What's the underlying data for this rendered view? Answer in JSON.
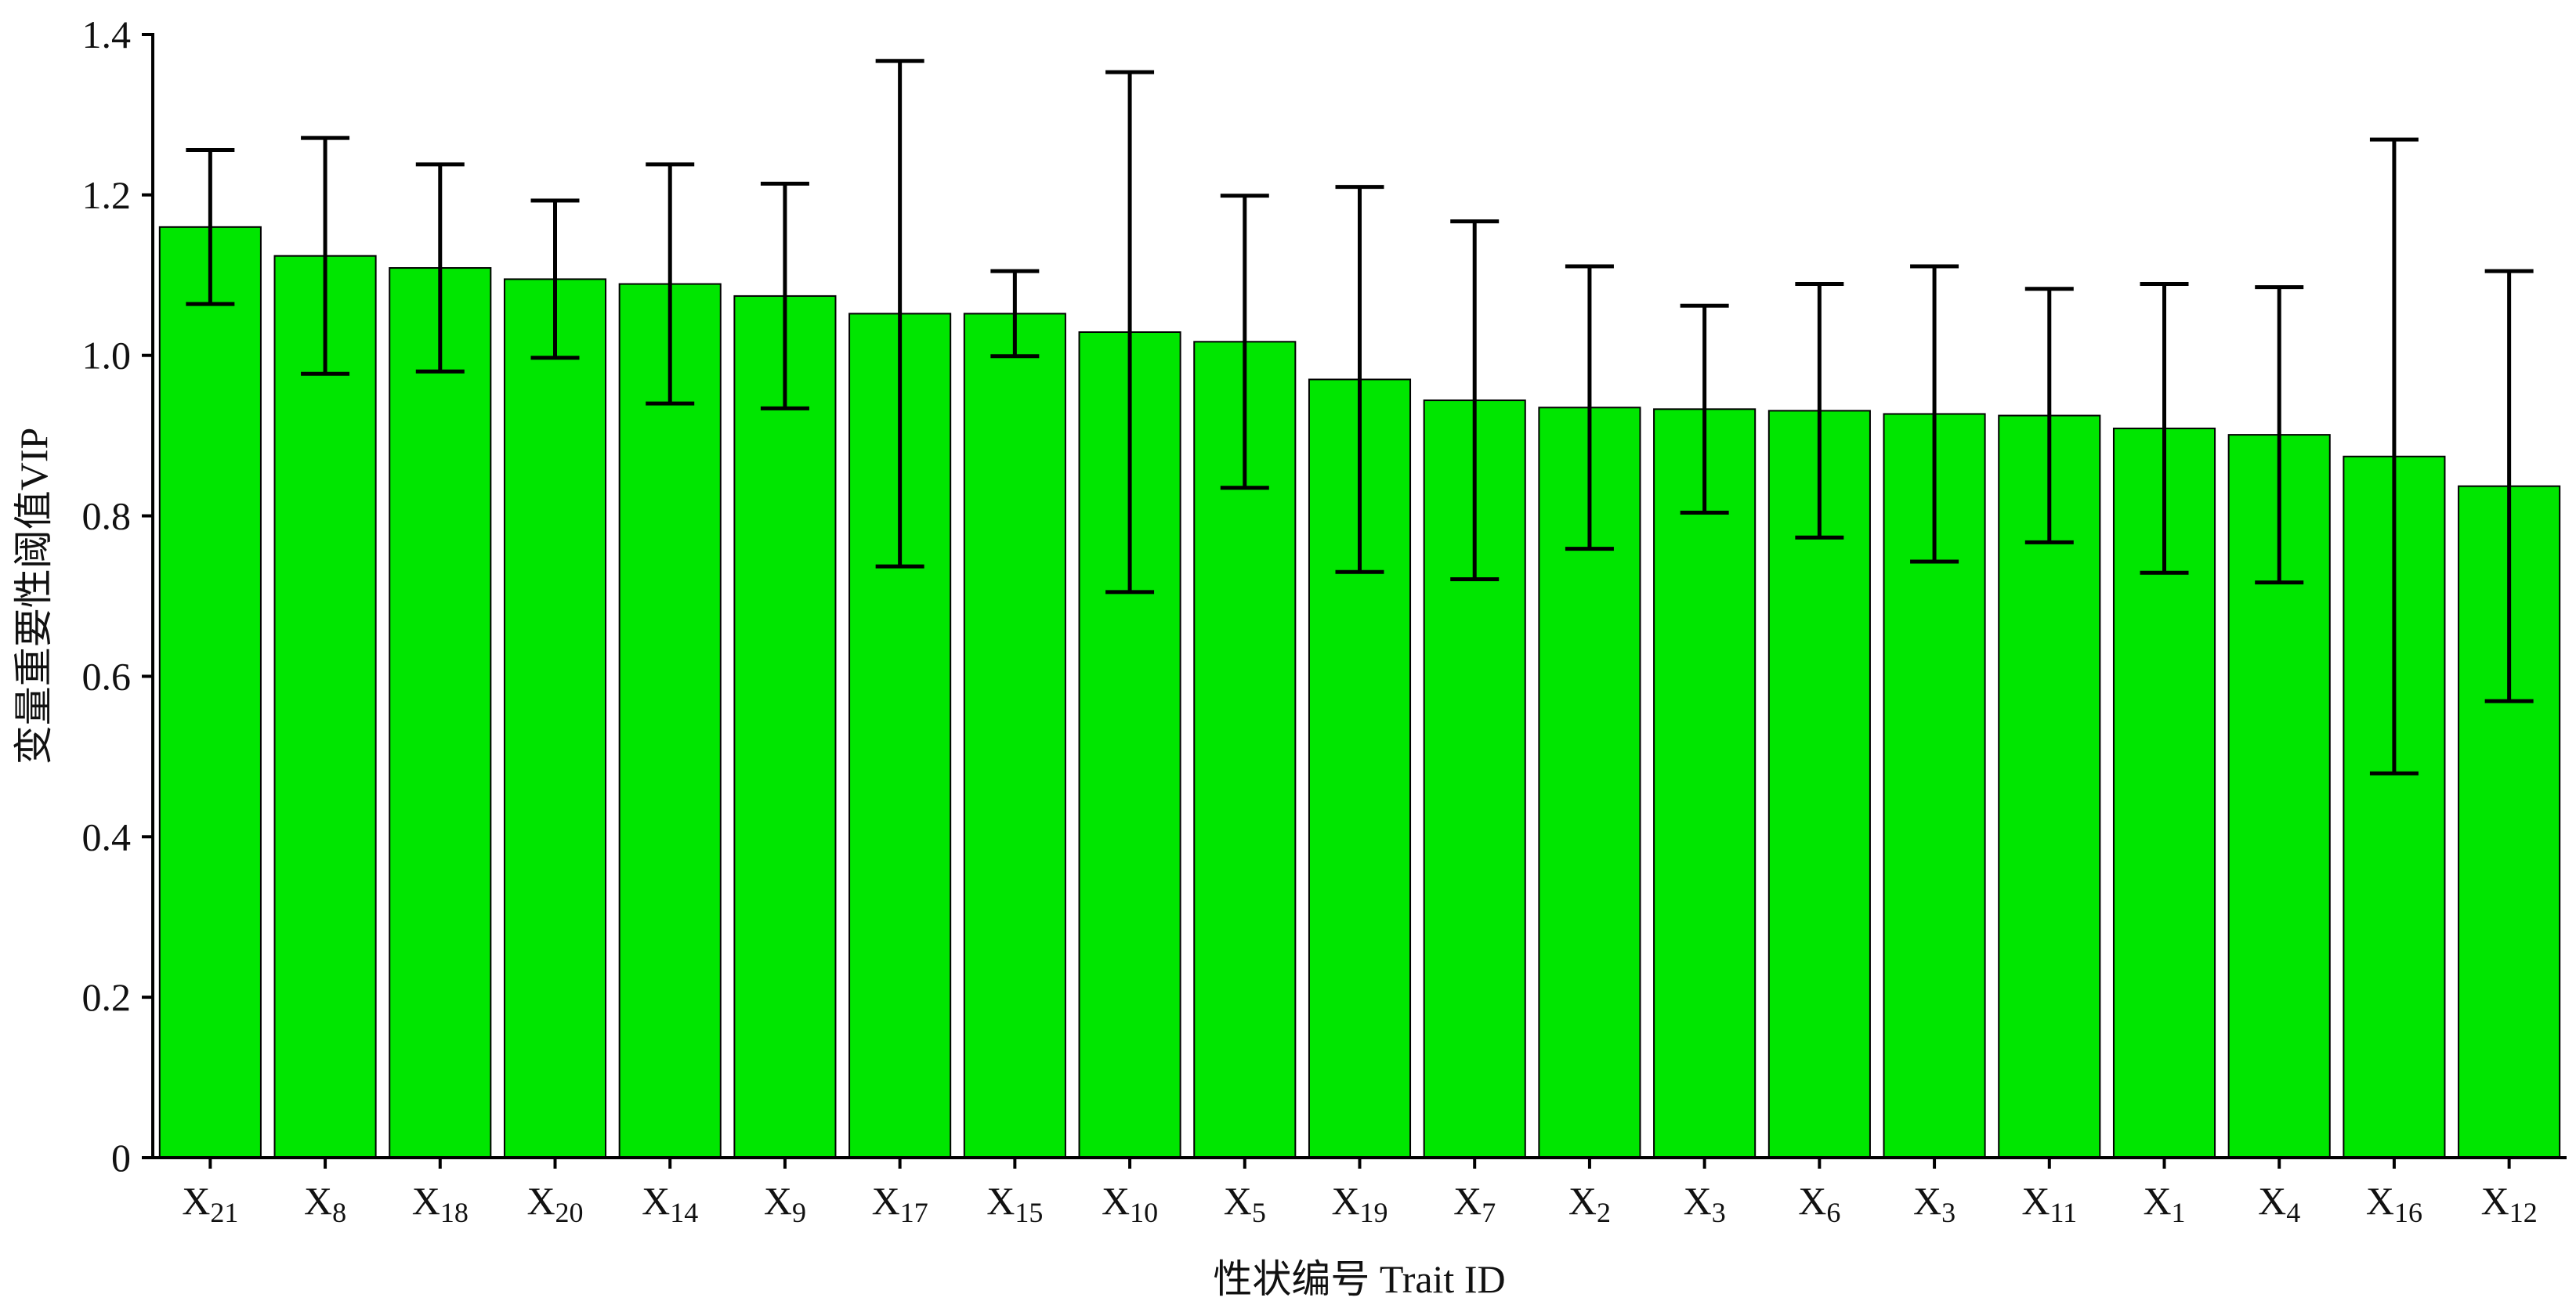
{
  "chart_data": {
    "type": "bar",
    "x_label": "性状编号 Trait ID",
    "y_label": "变量重要性阈值VIP",
    "categories": [
      "X21",
      "X8",
      "X18",
      "X20",
      "X14",
      "X9",
      "X17",
      "X15",
      "X10",
      "X5",
      "X19",
      "X7",
      "X2",
      "X3",
      "X6",
      "X3",
      "X11",
      "X1",
      "X4",
      "X16",
      "X12"
    ],
    "values": [
      1.16,
      1.124,
      1.109,
      1.095,
      1.089,
      1.074,
      1.052,
      1.052,
      1.029,
      1.017,
      0.97,
      0.944,
      0.935,
      0.933,
      0.931,
      0.927,
      0.925,
      0.909,
      0.901,
      0.874,
      0.837
    ],
    "errors": [
      0.096,
      0.147,
      0.129,
      0.098,
      0.149,
      0.14,
      0.315,
      0.053,
      0.324,
      0.182,
      0.24,
      0.223,
      0.176,
      0.129,
      0.158,
      0.184,
      0.158,
      0.18,
      0.184,
      0.395,
      0.268
    ],
    "color": "#00e600",
    "ylim": [
      0,
      1.4
    ],
    "yticks": [
      0,
      0.2,
      0.4,
      0.6,
      0.8,
      {
        "value": 1,
        "label": "1.0"
      },
      1.2,
      1.4
    ]
  }
}
